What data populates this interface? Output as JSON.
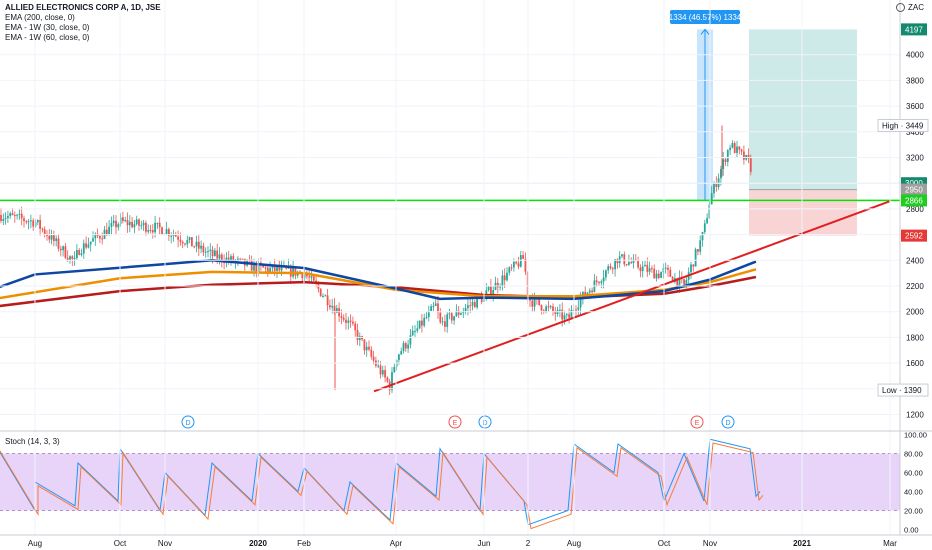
{
  "legend": {
    "title": "ALLIED ELECTRONICS CORP A, 1D, JSE",
    "lines": [
      "EMA (200, close, 0)",
      "EMA - 1W (30, close, 0)",
      "EMA - 1W (60, close, 0)"
    ]
  },
  "currency": "ZAC",
  "stoch_label": "Stoch (14, 3, 3)",
  "colors": {
    "up": "#26a69a",
    "down": "#ef5350",
    "ema200": "#b71c1c",
    "ema30w": "#0d47a1",
    "ema60w": "#ef8f00",
    "support": "#00e600",
    "trend": "#e01f1f",
    "stoch_k": "#2196f3",
    "stoch_d": "#f57c3c",
    "stoch_band": "#e1c6f7"
  },
  "chart_data": [
    {
      "type": "candlestick",
      "x_labels": [
        "Aug",
        "Oct",
        "Nov",
        "2020",
        "Feb",
        "Apr",
        "Jun",
        "2",
        "Aug",
        "Oct",
        "Nov",
        "2021",
        "Mar"
      ],
      "y_ticks": [
        1200,
        1400,
        1600,
        1800,
        2000,
        2200,
        2400,
        2600,
        2800,
        3000,
        3200,
        3400,
        3600,
        3800,
        4000
      ],
      "ylim": [
        1200,
        4200
      ],
      "price_labels": [
        {
          "label": "4197",
          "value": 4197,
          "color": "#138a6e"
        },
        {
          "label": "3000",
          "value": 3000,
          "color": "#138a6e"
        },
        {
          "label": "2950",
          "value": 2950,
          "color": "#9e9e9e"
        },
        {
          "label": "2866",
          "value": 2866,
          "color": "#1fcc1f"
        },
        {
          "label": "2592",
          "value": 2592,
          "color": "#e53935"
        }
      ],
      "high_label": "High · 3449",
      "low_label": "Low · 1390",
      "high": 3449,
      "low": 1390,
      "support_level": 2866,
      "measure_label": "1334 (46.57%) 1334",
      "events": [
        "D",
        "E",
        "D",
        "E",
        "D"
      ],
      "anchors": [
        {
          "x": "Jul 2019",
          "price": 2760
        },
        {
          "x": "Aug 2019",
          "price": 2700
        },
        {
          "x": "Aug 2019",
          "price": 2380
        },
        {
          "x": "Sep 2019",
          "price": 2480
        },
        {
          "x": "Oct 2019",
          "price": 2700
        },
        {
          "x": "Nov 2019",
          "price": 2640
        },
        {
          "x": "Dec 2019",
          "price": 2440
        },
        {
          "x": "Jan 2020",
          "price": 2340
        },
        {
          "x": "Feb 2020",
          "price": 2300
        },
        {
          "x": "Mar 2020",
          "price": 1900
        },
        {
          "x": "Mar 2020",
          "price": 1420
        },
        {
          "x": "Apr 2020",
          "price": 1650
        },
        {
          "x": "Apr 2020",
          "price": 2050
        },
        {
          "x": "May 2020",
          "price": 1900
        },
        {
          "x": "Jun 2020",
          "price": 2120
        },
        {
          "x": "Jun 2020",
          "price": 2420
        },
        {
          "x": "Jul 2020",
          "price": 2100
        },
        {
          "x": "Jul 2020",
          "price": 1940
        },
        {
          "x": "Aug 2020",
          "price": 2040
        },
        {
          "x": "Sep 2020",
          "price": 2420
        },
        {
          "x": "Sep 2020",
          "price": 2290
        },
        {
          "x": "Oct 2020",
          "price": 2320
        },
        {
          "x": "Oct 2020",
          "price": 2200
        },
        {
          "x": "Oct 2020",
          "price": 2620
        },
        {
          "x": "Nov 2020",
          "price": 2880
        },
        {
          "x": "Nov 2020",
          "price": 3300
        },
        {
          "x": "Nov 2020",
          "price": 3150
        },
        {
          "x": "Dec 2020",
          "price": 2950
        }
      ],
      "ema200": [
        {
          "x": "Jul 2019",
          "price": 2040
        },
        {
          "x": "Oct 2019",
          "price": 2160
        },
        {
          "x": "Dec 2019",
          "price": 2210
        },
        {
          "x": "Feb 2020",
          "price": 2230
        },
        {
          "x": "Apr 2020",
          "price": 2190
        },
        {
          "x": "Jun 2020",
          "price": 2130
        },
        {
          "x": "Aug 2020",
          "price": 2110
        },
        {
          "x": "Oct 2020",
          "price": 2140
        },
        {
          "x": "Nov 2020",
          "price": 2200
        },
        {
          "x": "Dec 2020",
          "price": 2270
        }
      ],
      "ema30w": [
        {
          "x": "Jul 2019",
          "price": 2180
        },
        {
          "x": "Aug 2019",
          "price": 2290
        },
        {
          "x": "Nov 2019",
          "price": 2370
        },
        {
          "x": "Dec 2019",
          "price": 2400
        },
        {
          "x": "Feb 2020",
          "price": 2340
        },
        {
          "x": "Apr 2020",
          "price": 2180
        },
        {
          "x": "May 2020",
          "price": 2100
        },
        {
          "x": "Jun 2020",
          "price": 2110
        },
        {
          "x": "Aug 2020",
          "price": 2100
        },
        {
          "x": "Oct 2020",
          "price": 2160
        },
        {
          "x": "Nov 2020",
          "price": 2250
        },
        {
          "x": "Dec 2020",
          "price": 2390
        }
      ],
      "ema60w": [
        {
          "x": "Jul 2019",
          "price": 2100
        },
        {
          "x": "Oct 2019",
          "price": 2260
        },
        {
          "x": "Dec 2019",
          "price": 2310
        },
        {
          "x": "Feb 2020",
          "price": 2300
        },
        {
          "x": "Apr 2020",
          "price": 2170
        },
        {
          "x": "Jun 2020",
          "price": 2120
        },
        {
          "x": "Aug 2020",
          "price": 2120
        },
        {
          "x": "Oct 2020",
          "price": 2170
        },
        {
          "x": "Nov 2020",
          "price": 2230
        },
        {
          "x": "Dec 2020",
          "price": 2330
        }
      ],
      "trendline": [
        {
          "x": "Mar 2020",
          "price": 1380
        },
        {
          "x": "Mar 2021",
          "price": 2860
        }
      ]
    },
    {
      "type": "line",
      "title": "Stoch (14, 3, 3)",
      "y_ticks": [
        0,
        20,
        40,
        60,
        80,
        100
      ],
      "y_tick_labels": [
        "0.00",
        "20.00",
        "40.00",
        "60.00",
        "80.00",
        "100.00"
      ],
      "ylim": [
        0,
        100
      ],
      "band": [
        20,
        80
      ],
      "k_anchors": [
        {
          "x": "Jul 2019",
          "v": 90
        },
        {
          "x": "Jul 2019",
          "v": 20
        },
        {
          "x": "Aug 2019",
          "v": 50
        },
        {
          "x": "Aug 2019",
          "v": 25
        },
        {
          "x": "Sep 2019",
          "v": 70
        },
        {
          "x": "Sep 2019",
          "v": 30
        },
        {
          "x": "Oct 2019",
          "v": 85
        },
        {
          "x": "Oct 2019",
          "v": 20
        },
        {
          "x": "Nov 2019",
          "v": 60
        },
        {
          "x": "Nov 2019",
          "v": 15
        },
        {
          "x": "Dec 2019",
          "v": 70
        },
        {
          "x": "Dec 2019",
          "v": 30
        },
        {
          "x": "Jan 2020",
          "v": 80
        },
        {
          "x": "Jan 2020",
          "v": 40
        },
        {
          "x": "Feb 2020",
          "v": 65
        },
        {
          "x": "Feb 2020",
          "v": 20
        },
        {
          "x": "Mar 2020",
          "v": 50
        },
        {
          "x": "Mar 2020",
          "v": 10
        },
        {
          "x": "Apr 2020",
          "v": 70
        },
        {
          "x": "Apr 2020",
          "v": 35
        },
        {
          "x": "May 2020",
          "v": 85
        },
        {
          "x": "May 2020",
          "v": 20
        },
        {
          "x": "Jun 2020",
          "v": 80
        },
        {
          "x": "Jun 2020",
          "v": 30
        },
        {
          "x": "Jul 2020",
          "v": 5
        },
        {
          "x": "Jul 2020",
          "v": 20
        },
        {
          "x": "Aug 2020",
          "v": 90
        },
        {
          "x": "Aug 2020",
          "v": 60
        },
        {
          "x": "Sep 2020",
          "v": 90
        },
        {
          "x": "Sep 2020",
          "v": 60
        },
        {
          "x": "Oct 2020",
          "v": 30
        },
        {
          "x": "Oct 2020",
          "v": 80
        },
        {
          "x": "Oct 2020",
          "v": 30
        },
        {
          "x": "Nov 2020",
          "v": 95
        },
        {
          "x": "Nov 2020",
          "v": 85
        },
        {
          "x": "Dec 2020",
          "v": 35
        },
        {
          "x": "Dec 2020",
          "v": 40
        }
      ]
    }
  ]
}
